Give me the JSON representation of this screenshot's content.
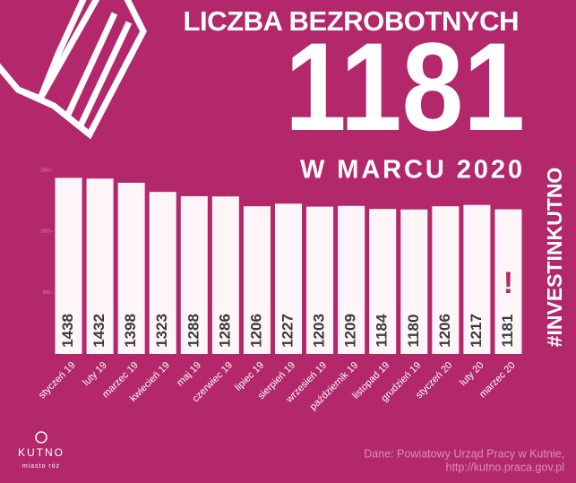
{
  "chart_data": {
    "type": "bar",
    "title": "LICZBA BEZROBOTNYCH",
    "headline": "1181",
    "subtitle": "W MARCU 2020",
    "hashtag": "#INVESTINKUTNO",
    "categories": [
      "styczeń 19",
      "luty 19",
      "marzec 19",
      "kwiecień 19",
      "maj 19",
      "czerwiec 19",
      "lipiec 19",
      "sierpień 19",
      "wrzesień 19",
      "październik 19",
      "listopad 19",
      "grudzień 19",
      "styczeń 20",
      "luty 20",
      "marzec 20"
    ],
    "values": [
      1438,
      1432,
      1398,
      1323,
      1288,
      1286,
      1206,
      1227,
      1203,
      1209,
      1184,
      1180,
      1206,
      1217,
      1181
    ],
    "color": "#fdf5f8",
    "ylim": [
      0,
      1500
    ],
    "yticks": [
      500,
      1000,
      1500
    ],
    "annotation": "!"
  },
  "source": [
    "Dane: Powiatowy Urząd Pracy w Kutnie,",
    "http://kutno.praca.gov.pl"
  ],
  "logo": {
    "name": "KUTNO",
    "tagline": "miasto róż"
  }
}
